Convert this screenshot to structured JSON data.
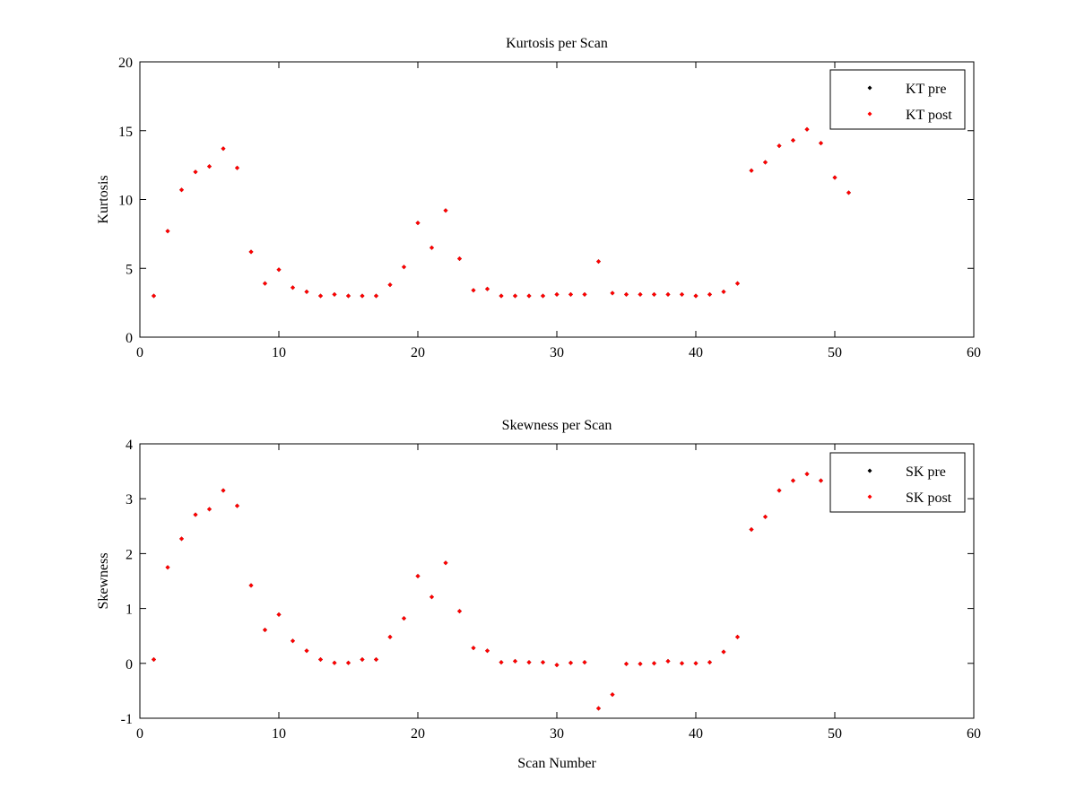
{
  "chart_data": [
    {
      "type": "scatter",
      "title": "Kurtosis per Scan",
      "xlabel": "",
      "ylabel": "Kurtosis",
      "xlim": [
        0,
        60
      ],
      "ylim": [
        0,
        20
      ],
      "xticks": [
        0,
        10,
        20,
        30,
        40,
        50,
        60
      ],
      "yticks": [
        0,
        5,
        10,
        15,
        20
      ],
      "grid": false,
      "legend_position": "top-right",
      "x": [
        1,
        2,
        3,
        4,
        5,
        6,
        7,
        8,
        9,
        10,
        11,
        12,
        13,
        14,
        15,
        16,
        17,
        18,
        19,
        20,
        21,
        22,
        23,
        24,
        25,
        26,
        27,
        28,
        29,
        30,
        31,
        32,
        33,
        34,
        35,
        36,
        37,
        38,
        39,
        40,
        41,
        42,
        43,
        44,
        45,
        46,
        47,
        48,
        49,
        50,
        51
      ],
      "series": [
        {
          "name": "KT pre",
          "color": "#000000",
          "values": [
            3.0,
            7.7,
            10.7,
            12.0,
            12.4,
            13.7,
            12.3,
            6.2,
            3.9,
            4.9,
            3.6,
            3.3,
            3.0,
            3.1,
            3.0,
            3.0,
            3.0,
            3.8,
            5.1,
            8.3,
            6.5,
            9.2,
            5.7,
            3.4,
            3.5,
            3.0,
            3.0,
            3.0,
            3.0,
            3.1,
            3.1,
            3.1,
            5.5,
            3.2,
            3.1,
            3.1,
            3.1,
            3.1,
            3.1,
            3.0,
            3.1,
            3.3,
            3.9,
            12.1,
            12.7,
            13.9,
            14.3,
            15.1,
            14.1,
            11.6,
            10.5
          ]
        },
        {
          "name": "KT post",
          "color": "#ff0000",
          "values": [
            3.0,
            7.7,
            10.7,
            12.0,
            12.4,
            13.7,
            12.3,
            6.2,
            3.9,
            4.9,
            3.6,
            3.3,
            3.0,
            3.1,
            3.0,
            3.0,
            3.0,
            3.8,
            5.1,
            8.3,
            6.5,
            9.2,
            5.7,
            3.4,
            3.5,
            3.0,
            3.0,
            3.0,
            3.0,
            3.1,
            3.1,
            3.1,
            5.5,
            3.2,
            3.1,
            3.1,
            3.1,
            3.1,
            3.1,
            3.0,
            3.1,
            3.3,
            3.9,
            12.1,
            12.7,
            13.9,
            14.3,
            15.1,
            14.1,
            11.6,
            10.5
          ]
        }
      ]
    },
    {
      "type": "scatter",
      "title": "Skewness per Scan",
      "xlabel": "Scan Number",
      "ylabel": "Skewness",
      "xlim": [
        0,
        60
      ],
      "ylim": [
        -1,
        4
      ],
      "xticks": [
        0,
        10,
        20,
        30,
        40,
        50,
        60
      ],
      "yticks": [
        -1,
        0,
        1,
        2,
        3,
        4
      ],
      "grid": false,
      "legend_position": "top-right",
      "x": [
        1,
        2,
        3,
        4,
        5,
        6,
        7,
        8,
        9,
        10,
        11,
        12,
        13,
        14,
        15,
        16,
        17,
        18,
        19,
        20,
        21,
        22,
        23,
        24,
        25,
        26,
        27,
        28,
        29,
        30,
        31,
        32,
        33,
        34,
        35,
        36,
        37,
        38,
        39,
        40,
        41,
        42,
        43,
        44,
        45,
        46,
        47,
        48,
        49,
        50,
        51
      ],
      "series": [
        {
          "name": "SK pre",
          "color": "#000000",
          "values": [
            0.07,
            1.75,
            2.27,
            2.71,
            2.81,
            3.15,
            2.87,
            1.42,
            0.61,
            0.89,
            0.41,
            0.23,
            0.07,
            0.01,
            0.01,
            0.07,
            0.07,
            0.48,
            0.82,
            1.59,
            1.21,
            1.83,
            0.95,
            0.28,
            0.23,
            0.02,
            0.04,
            0.02,
            0.02,
            -0.03,
            0.01,
            0.02,
            -0.82,
            -0.57,
            -0.01,
            -0.01,
            0.0,
            0.04,
            0.0,
            0.0,
            0.02,
            0.21,
            0.48,
            2.44,
            2.67,
            3.15,
            3.33,
            3.45,
            3.33,
            3.48,
            3.44
          ]
        },
        {
          "name": "SK post",
          "color": "#ff0000",
          "values": [
            0.07,
            1.75,
            2.27,
            2.71,
            2.81,
            3.15,
            2.87,
            1.42,
            0.61,
            0.89,
            0.41,
            0.23,
            0.07,
            0.01,
            0.01,
            0.07,
            0.07,
            0.48,
            0.82,
            1.59,
            1.21,
            1.83,
            0.95,
            0.28,
            0.23,
            0.02,
            0.04,
            0.02,
            0.02,
            -0.03,
            0.01,
            0.02,
            -0.82,
            -0.57,
            -0.01,
            -0.01,
            0.0,
            0.04,
            0.0,
            0.0,
            0.02,
            0.21,
            0.48,
            2.44,
            2.67,
            3.15,
            3.33,
            3.45,
            3.33,
            3.48,
            3.44
          ]
        }
      ]
    }
  ]
}
